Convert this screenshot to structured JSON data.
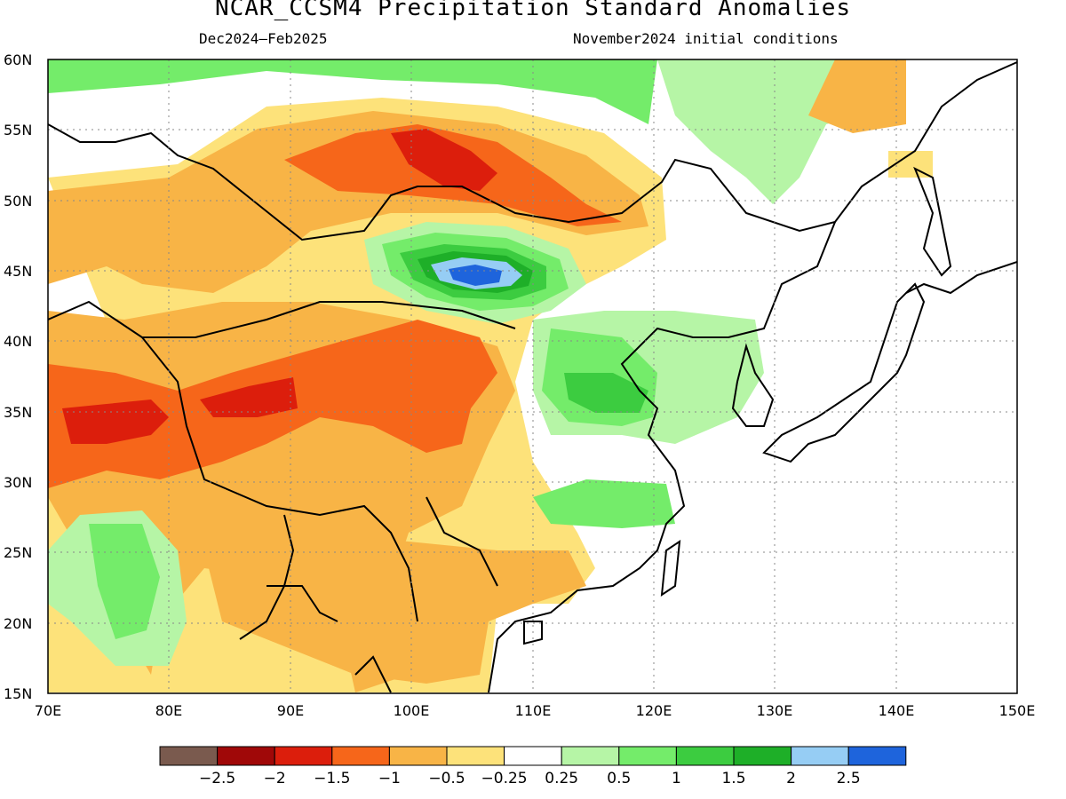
{
  "title": "NCAR_CCSM4 Precipitation Standard Anomalies",
  "subtitle_left": "Dec2024–Feb2025",
  "subtitle_right": "November2024 initial conditions",
  "map": {
    "lon_range": [
      70,
      150
    ],
    "lat_range": [
      15,
      60
    ],
    "lon_ticks": [
      "70E",
      "80E",
      "90E",
      "100E",
      "110E",
      "120E",
      "130E",
      "140E",
      "150E"
    ],
    "lat_ticks": [
      "60N",
      "55N",
      "50N",
      "45N",
      "40N",
      "35N",
      "30N",
      "25N",
      "20N",
      "15N"
    ],
    "grid": "dotted"
  },
  "colorbar": {
    "labels": [
      "−2.5",
      "−2",
      "−1.5",
      "−1",
      "−0.5",
      "−0.25",
      "0.25",
      "0.5",
      "1",
      "1.5",
      "2",
      "2.5"
    ],
    "colors": [
      "#7a5a4e",
      "#a00808",
      "#dc1e0c",
      "#f6661a",
      "#f8b446",
      "#fde27a",
      "#ffffff",
      "#b6f5a6",
      "#74ec6a",
      "#3ccc40",
      "#1eaf28",
      "#96cdf4",
      "#1e64dc"
    ]
  },
  "palette": {
    "neg_weak": "#fde27a",
    "neg_mod": "#f8b446",
    "neg_strong": "#f6661a",
    "neg_vstrong": "#dc1e0c",
    "pos_weak": "#b6f5a6",
    "pos_mod": "#74ec6a",
    "pos_strong": "#3ccc40",
    "pos_vstrong": "#1eaf28",
    "pos_light_blue": "#96cdf4",
    "pos_blue": "#1e64dc"
  }
}
